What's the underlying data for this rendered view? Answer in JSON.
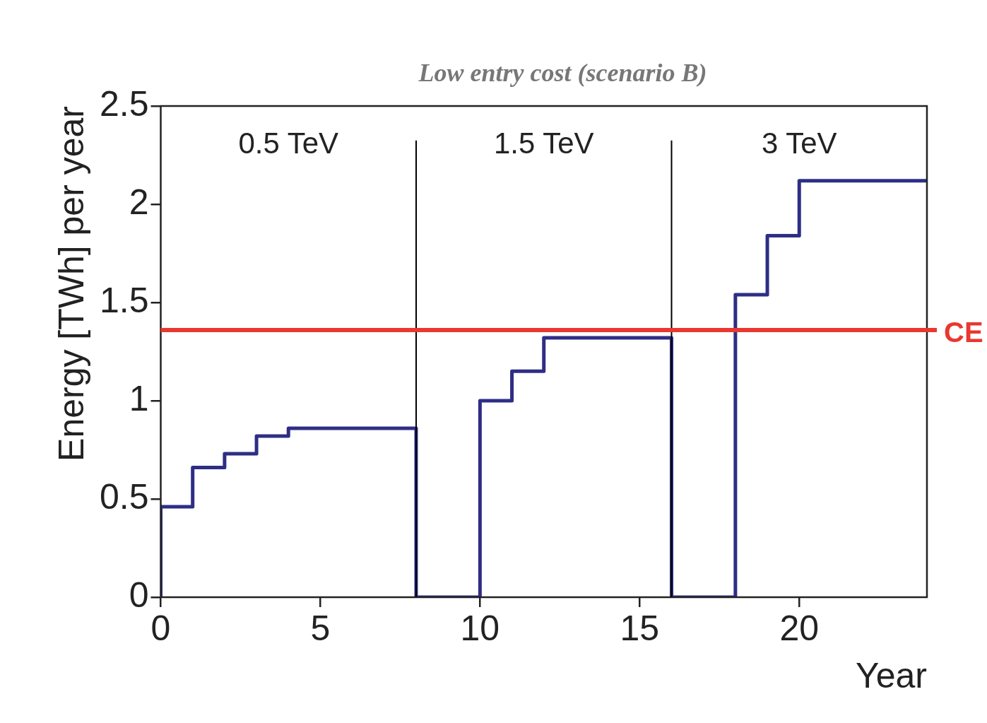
{
  "chart_data": {
    "type": "step",
    "title": "Low entry cost (scenario B)",
    "xlabel": "Year",
    "ylabel": "Energy [TWh] per year",
    "x": [
      0,
      0,
      1,
      2,
      3,
      4,
      8,
      10,
      11,
      12,
      16,
      18,
      19,
      20,
      24
    ],
    "series": [
      {
        "color": "#2e2e86",
        "values": [
          0,
          0.46,
          0.66,
          0.73,
          0.82,
          0.86,
          0,
          1.0,
          1.15,
          1.32,
          0,
          1.54,
          1.84,
          2.12,
          2.12
        ]
      }
    ],
    "xlim": [
      0,
      24
    ],
    "xticks": [
      0,
      5,
      10,
      15,
      20
    ],
    "ylim": [
      0,
      2.5
    ],
    "yticks": [
      0,
      {
        "value": 0.5,
        "label": "0.5"
      },
      1,
      {
        "value": 1.5,
        "label": "1.5"
      },
      2,
      {
        "value": 2.5,
        "label": "2.5"
      }
    ],
    "ref_lines": [
      {
        "axis": "x",
        "value": 8,
        "color": "#000000"
      },
      {
        "axis": "x",
        "value": 16,
        "color": "#000000"
      },
      {
        "axis": "y",
        "value": 1.36,
        "label": "CE",
        "color": "#e8382f"
      }
    ],
    "annotations": [
      "0.5 TeV",
      "1.5 TeV",
      "3 TeV"
    ],
    "grid": false,
    "legend": false,
    "marker": "none",
    "line_style": "solid"
  }
}
